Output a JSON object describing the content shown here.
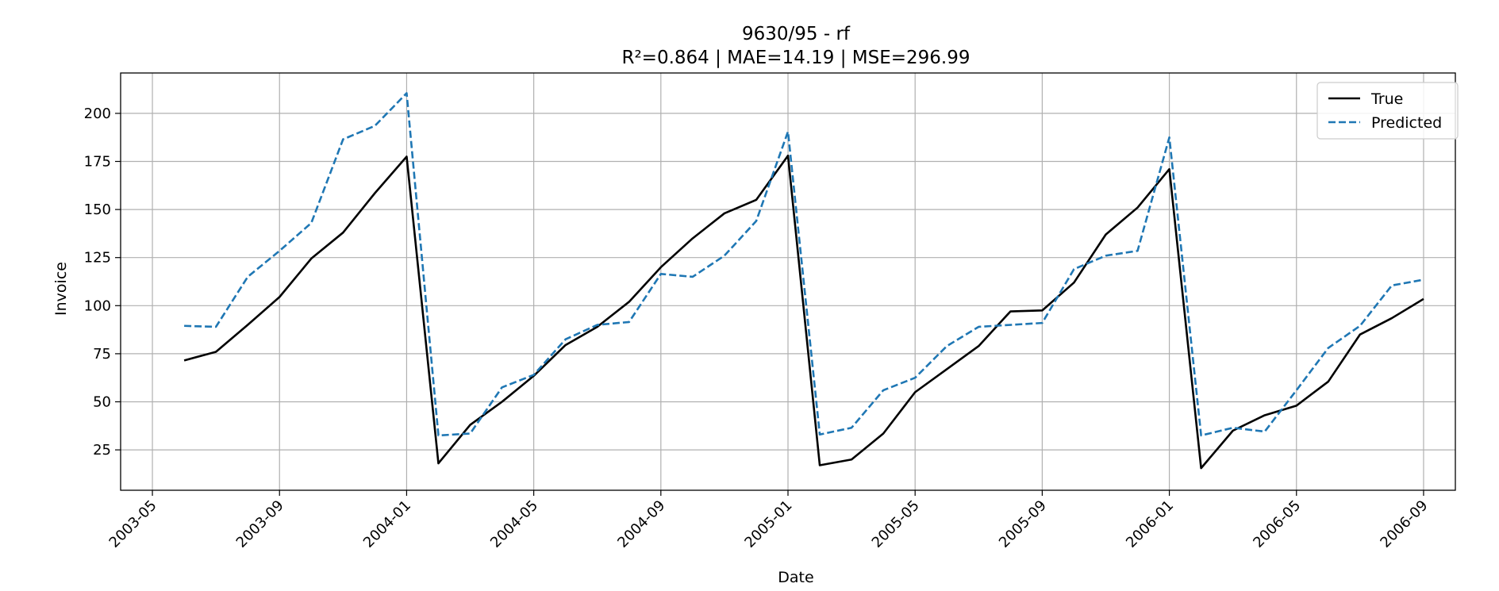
{
  "chart_data": {
    "type": "line",
    "title": "9630/95 - rf",
    "subtitle": "R²=0.864 | MAE=14.19 | MSE=296.99",
    "xlabel": "Date",
    "ylabel": "Invoice",
    "xlim": [
      "2003-04-01",
      "2006-10-01"
    ],
    "ylim": [
      4,
      221
    ],
    "x_ticks": [
      "2003-05",
      "2003-09",
      "2004-01",
      "2004-05",
      "2004-09",
      "2005-01",
      "2005-05",
      "2005-09",
      "2006-01",
      "2006-05",
      "2006-09"
    ],
    "y_ticks": [
      25,
      50,
      75,
      100,
      125,
      150,
      175,
      200
    ],
    "grid": true,
    "legend_position": "top-right",
    "x": [
      "2003-06",
      "2003-07",
      "2003-08",
      "2003-09",
      "2003-10",
      "2003-11",
      "2003-12",
      "2004-01",
      "2004-02",
      "2004-03",
      "2004-04",
      "2004-05",
      "2004-06",
      "2004-07",
      "2004-08",
      "2004-09",
      "2004-10",
      "2004-11",
      "2004-12",
      "2005-01",
      "2005-02",
      "2005-03",
      "2005-04",
      "2005-05",
      "2005-06",
      "2005-07",
      "2005-08",
      "2005-09",
      "2005-10",
      "2005-11",
      "2005-12",
      "2006-01",
      "2006-02",
      "2006-03",
      "2006-04",
      "2006-05",
      "2006-06",
      "2006-07",
      "2006-08",
      "2006-09"
    ],
    "series": [
      {
        "name": "True",
        "color": "#000000",
        "style": "solid",
        "values": [
          71.5,
          76,
          90,
          104.5,
          124.5,
          138,
          158.5,
          177.5,
          18,
          38,
          50,
          63.5,
          79.5,
          89,
          102,
          120,
          135,
          148,
          155,
          178,
          17,
          20,
          33.5,
          55,
          67,
          79,
          97,
          97.5,
          112,
          137,
          151,
          171,
          15.5,
          35,
          43,
          48,
          60.5,
          85,
          93.5,
          103.5
        ]
      },
      {
        "name": "Predicted",
        "color": "#1f77b4",
        "style": "dashed",
        "values": [
          89.5,
          89,
          115,
          128.5,
          143,
          186.5,
          193.5,
          210.5,
          32.5,
          33.5,
          57.5,
          64,
          82.5,
          90,
          91.5,
          116.5,
          115,
          126,
          144,
          190.5,
          33,
          36.5,
          56,
          62.5,
          79,
          89,
          90,
          91,
          119,
          126,
          128.5,
          187.5,
          32.5,
          36.5,
          34.5,
          56,
          78,
          89.5,
          110.5,
          113.5
        ]
      }
    ]
  }
}
